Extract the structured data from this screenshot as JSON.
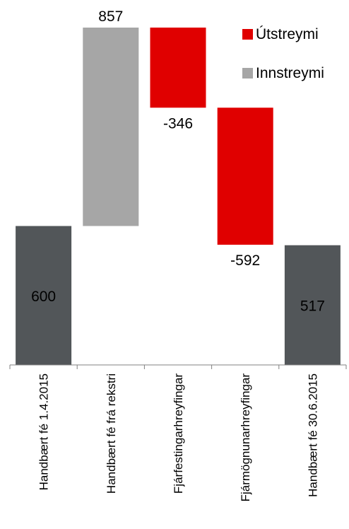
{
  "chart_data": {
    "type": "waterfall",
    "title": "",
    "xlabel": "",
    "ylabel": "",
    "ylim": [
      0,
      1500
    ],
    "grid": false,
    "legend_position": "top-right",
    "legend": [
      {
        "name": "Útstreymi",
        "color": "#e00000"
      },
      {
        "name": "Innstreymi",
        "color": "#a6a6a6"
      }
    ],
    "categories": [
      "Handbært fé 1.4.2015",
      "Handbært fé frá rekstri",
      "Fjárfestingarhreyfingar",
      "Fjármögnunarhreyfingar",
      "Handbært fé 30.6.2015"
    ],
    "values": [
      600,
      857,
      -346,
      -592,
      517
    ],
    "value_labels": [
      "600",
      "857",
      "-346",
      "-592",
      "517"
    ],
    "kinds": [
      "total",
      "increase",
      "decrease",
      "decrease",
      "total"
    ],
    "colors": {
      "total": "#525659",
      "increase": "#a6a6a6",
      "decrease": "#e00000",
      "axis": "#808080"
    }
  }
}
